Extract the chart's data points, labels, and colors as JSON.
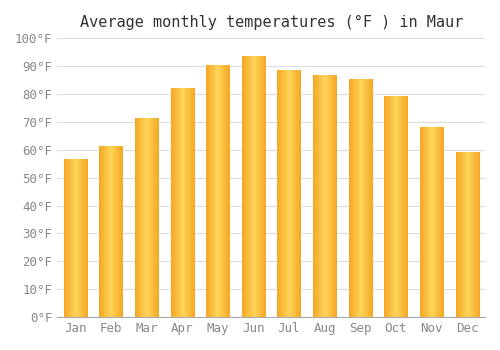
{
  "title": "Average monthly temperatures (°F ) in Maur",
  "months": [
    "Jan",
    "Feb",
    "Mar",
    "Apr",
    "May",
    "Jun",
    "Jul",
    "Aug",
    "Sep",
    "Oct",
    "Nov",
    "Dec"
  ],
  "values": [
    56.5,
    61.0,
    71.0,
    82.0,
    90.0,
    93.5,
    88.5,
    86.5,
    85.0,
    79.0,
    68.0,
    59.0
  ],
  "bar_color_edge": "#F5A623",
  "bar_color_center": "#FFD55A",
  "background_color": "#FFFFFF",
  "grid_color": "#DDDDDD",
  "ylim": [
    0,
    100
  ],
  "yticks": [
    0,
    10,
    20,
    30,
    40,
    50,
    60,
    70,
    80,
    90,
    100
  ],
  "ytick_labels": [
    "0°F",
    "10°F",
    "20°F",
    "30°F",
    "40°F",
    "50°F",
    "60°F",
    "70°F",
    "80°F",
    "90°F",
    "100°F"
  ],
  "title_fontsize": 11,
  "tick_fontsize": 9,
  "title_font": "monospace",
  "tick_font": "monospace",
  "tick_color": "#888888",
  "title_color": "#333333",
  "bar_width": 0.65
}
